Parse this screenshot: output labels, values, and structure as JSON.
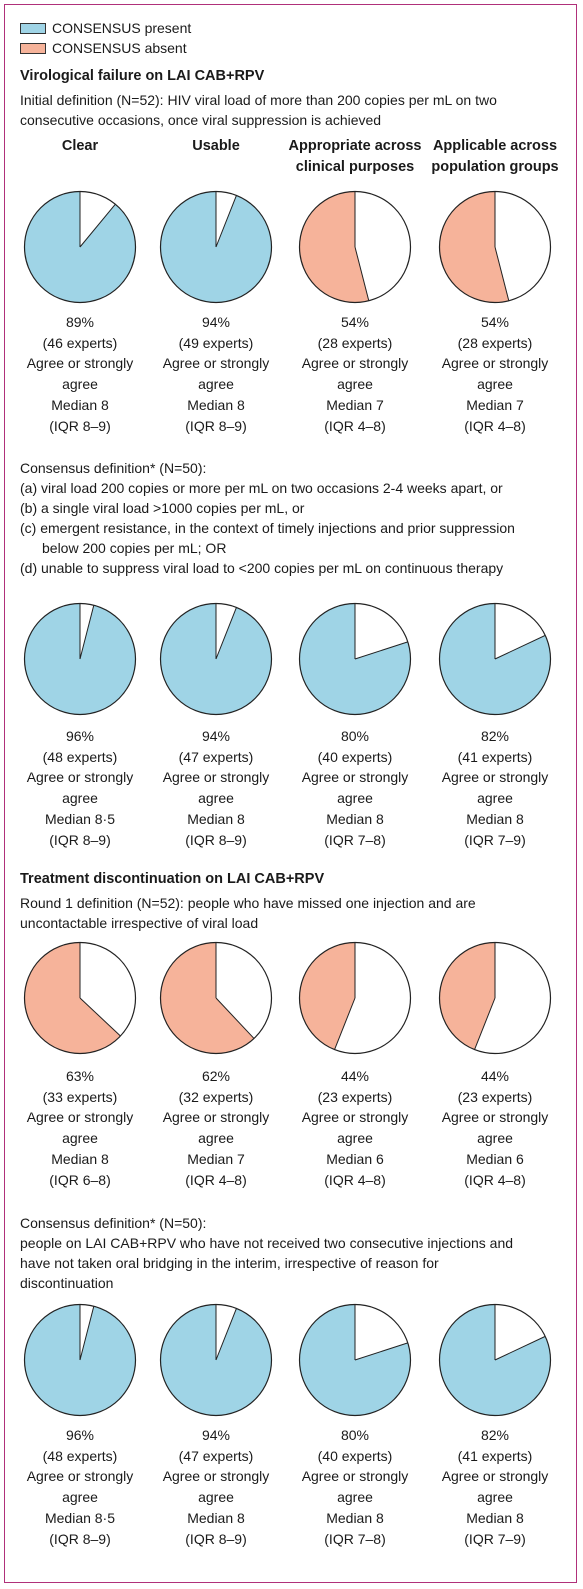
{
  "colors": {
    "present": "#9fd4e6",
    "absent": "#f6b39a",
    "frame": "#b0307a"
  },
  "legend": {
    "present": "CONSENSUS present",
    "absent": "CONSENSUS absent"
  },
  "columns": [
    "Clear",
    "Usable",
    "Appropriate across clinical purposes",
    "Applicable across population groups"
  ],
  "columns_lines": [
    [
      "Clear"
    ],
    [
      "Usable"
    ],
    [
      "Appropriate across",
      "clinical purposes"
    ],
    [
      "Applicable across",
      "population groups"
    ]
  ],
  "sections": [
    {
      "title": "Virological failure on LAI CAB+RPV",
      "blocks": [
        {
          "def": [
            "Initial definition (N=52): HIV viral load of more than 200 copies per mL on two",
            "consecutive occasions, once viral suppression is achieved"
          ],
          "cells": [
            {
              "pct": "89%",
              "experts": "(46 experts)",
              "agree": "Agree or strongly",
              "agree2": "agree",
              "median": "Median 8",
              "iqr": "(IQR 8–9)"
            },
            {
              "pct": "94%",
              "experts": "(49 experts)",
              "agree": "Agree or strongly",
              "agree2": "agree",
              "median": "Median 8",
              "iqr": "(IQR 8–9)"
            },
            {
              "pct": "54%",
              "experts": "(28 experts)",
              "agree": "Agree or strongly",
              "agree2": "agree",
              "median": "Median 7",
              "iqr": "(IQR 4–8)"
            },
            {
              "pct": "54%",
              "experts": "(28 experts)",
              "agree": "Agree or strongly",
              "agree2": "agree",
              "median": "Median 7",
              "iqr": "(IQR 4–8)"
            }
          ]
        },
        {
          "def": [
            "Consensus definition* (N=50):",
            "(a) viral load 200 copies or more per mL on two occasions 2-4 weeks apart, or",
            "(b) a single viral load >1000 copies per mL, or",
            "(c) emergent resistance, in the context of timely injections and prior suppression",
            "below 200 copies per mL; OR",
            "(d) unable to suppress viral load to <200 copies per mL on continuous therapy"
          ],
          "cells": [
            {
              "pct": "96%",
              "experts": "(48 experts)",
              "agree": "Agree or strongly",
              "agree2": "agree",
              "median": "Median 8·5",
              "iqr": "(IQR 8–9)"
            },
            {
              "pct": "94%",
              "experts": "(47 experts)",
              "agree": "Agree or strongly",
              "agree2": "agree",
              "median": "Median 8",
              "iqr": "(IQR 8–9)"
            },
            {
              "pct": "80%",
              "experts": "(40 experts)",
              "agree": "Agree or strongly",
              "agree2": "agree",
              "median": "Median 8",
              "iqr": "(IQR 7–8)"
            },
            {
              "pct": "82%",
              "experts": "(41 experts)",
              "agree": "Agree or strongly",
              "agree2": "agree",
              "median": "Median 8",
              "iqr": "(IQR 7–9)"
            }
          ]
        }
      ]
    },
    {
      "title": "Treatment discontinuation on LAI CAB+RPV",
      "blocks": [
        {
          "def": [
            "Round 1 definition (N=52): people who have missed one injection and are",
            "uncontactable irrespective of viral load"
          ],
          "cells": [
            {
              "pct": "63%",
              "experts": "(33 experts)",
              "agree": "Agree or strongly",
              "agree2": "agree",
              "median": "Median 8",
              "iqr": "(IQR 6–8)"
            },
            {
              "pct": "62%",
              "experts": "(32 experts)",
              "agree": "Agree or strongly",
              "agree2": "agree",
              "median": "Median 7",
              "iqr": "(IQR 4–8)"
            },
            {
              "pct": "44%",
              "experts": "(23 experts)",
              "agree": "Agree or strongly",
              "agree2": "agree",
              "median": "Median 6",
              "iqr": "(IQR 4–8)"
            },
            {
              "pct": "44%",
              "experts": "(23 experts)",
              "agree": "Agree or strongly",
              "agree2": "agree",
              "median": "Median 6",
              "iqr": "(IQR 4–8)"
            }
          ]
        },
        {
          "def": [
            "Consensus definition* (N=50):",
            "people on LAI CAB+RPV who have not received two consecutive injections and",
            "have not taken oral bridging in the interim, irrespective of reason for",
            "discontinuation"
          ],
          "cells": [
            {
              "pct": "96%",
              "experts": "(48 experts)",
              "agree": "Agree or strongly",
              "agree2": "agree",
              "median": "Median 8·5",
              "iqr": "(IQR 8–9)"
            },
            {
              "pct": "94%",
              "experts": "(47 experts)",
              "agree": "Agree or strongly",
              "agree2": "agree",
              "median": "Median 8",
              "iqr": "(IQR 8–9)"
            },
            {
              "pct": "80%",
              "experts": "(40 experts)",
              "agree": "Agree or strongly",
              "agree2": "agree",
              "median": "Median 8",
              "iqr": "(IQR 7–8)"
            },
            {
              "pct": "82%",
              "experts": "(41 experts)",
              "agree": "Agree or strongly",
              "agree2": "agree",
              "median": "Median 8",
              "iqr": "(IQR 7–9)"
            }
          ]
        }
      ]
    }
  ],
  "chart_data": {
    "type": "pie",
    "legend": [
      "CONSENSUS present",
      "CONSENSUS absent"
    ],
    "categories": [
      "Clear",
      "Usable",
      "Appropriate across clinical purposes",
      "Applicable across population groups"
    ],
    "series": [
      {
        "section": "Virological failure on LAI CAB+RPV",
        "definition": "Initial definition (N=52)",
        "values": [
          89,
          94,
          54,
          54
        ],
        "consensus": [
          true,
          true,
          false,
          false
        ]
      },
      {
        "section": "Virological failure on LAI CAB+RPV",
        "definition": "Consensus definition* (N=50)",
        "values": [
          96,
          94,
          80,
          82
        ],
        "consensus": [
          true,
          true,
          true,
          true
        ]
      },
      {
        "section": "Treatment discontinuation on LAI CAB+RPV",
        "definition": "Round 1 definition (N=52)",
        "values": [
          63,
          62,
          44,
          44
        ],
        "consensus": [
          false,
          false,
          false,
          false
        ]
      },
      {
        "section": "Treatment discontinuation on LAI CAB+RPV",
        "definition": "Consensus definition* (N=50)",
        "values": [
          96,
          94,
          80,
          82
        ],
        "consensus": [
          true,
          true,
          true,
          true
        ]
      }
    ]
  }
}
